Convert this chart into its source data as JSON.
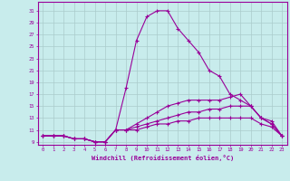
{
  "xlabel": "Windchill (Refroidissement éolien,°C)",
  "bg_color": "#c8ecec",
  "line_color": "#990099",
  "grid_color": "#aacccc",
  "x_ticks": [
    0,
    1,
    2,
    3,
    4,
    5,
    6,
    7,
    8,
    9,
    10,
    11,
    12,
    13,
    14,
    15,
    16,
    17,
    18,
    19,
    20,
    21,
    22,
    23
  ],
  "y_ticks": [
    9,
    11,
    13,
    15,
    17,
    19,
    21,
    23,
    25,
    27,
    29,
    31
  ],
  "ylim": [
    8.5,
    32.5
  ],
  "xlim": [
    -0.5,
    23.5
  ],
  "series": [
    [
      10,
      10,
      10,
      9.5,
      9.5,
      9,
      9,
      11,
      18,
      26,
      30,
      31,
      31,
      28,
      26,
      24,
      21,
      20,
      17,
      16,
      15,
      13,
      12,
      10
    ],
    [
      10,
      10,
      10,
      9.5,
      9.5,
      9,
      9,
      11,
      11,
      12,
      13,
      14,
      15,
      15.5,
      16,
      16,
      16,
      16,
      16.5,
      17,
      15,
      13,
      12,
      10
    ],
    [
      10,
      10,
      10,
      9.5,
      9.5,
      9,
      9,
      11,
      11,
      11.5,
      12,
      12.5,
      13,
      13.5,
      14,
      14,
      14.5,
      14.5,
      15,
      15,
      15,
      13,
      12.5,
      10
    ],
    [
      10,
      10,
      10,
      9.5,
      9.5,
      9,
      9,
      11,
      11,
      11,
      11.5,
      12,
      12,
      12.5,
      12.5,
      13,
      13,
      13,
      13,
      13,
      13,
      12,
      11.5,
      10
    ]
  ]
}
